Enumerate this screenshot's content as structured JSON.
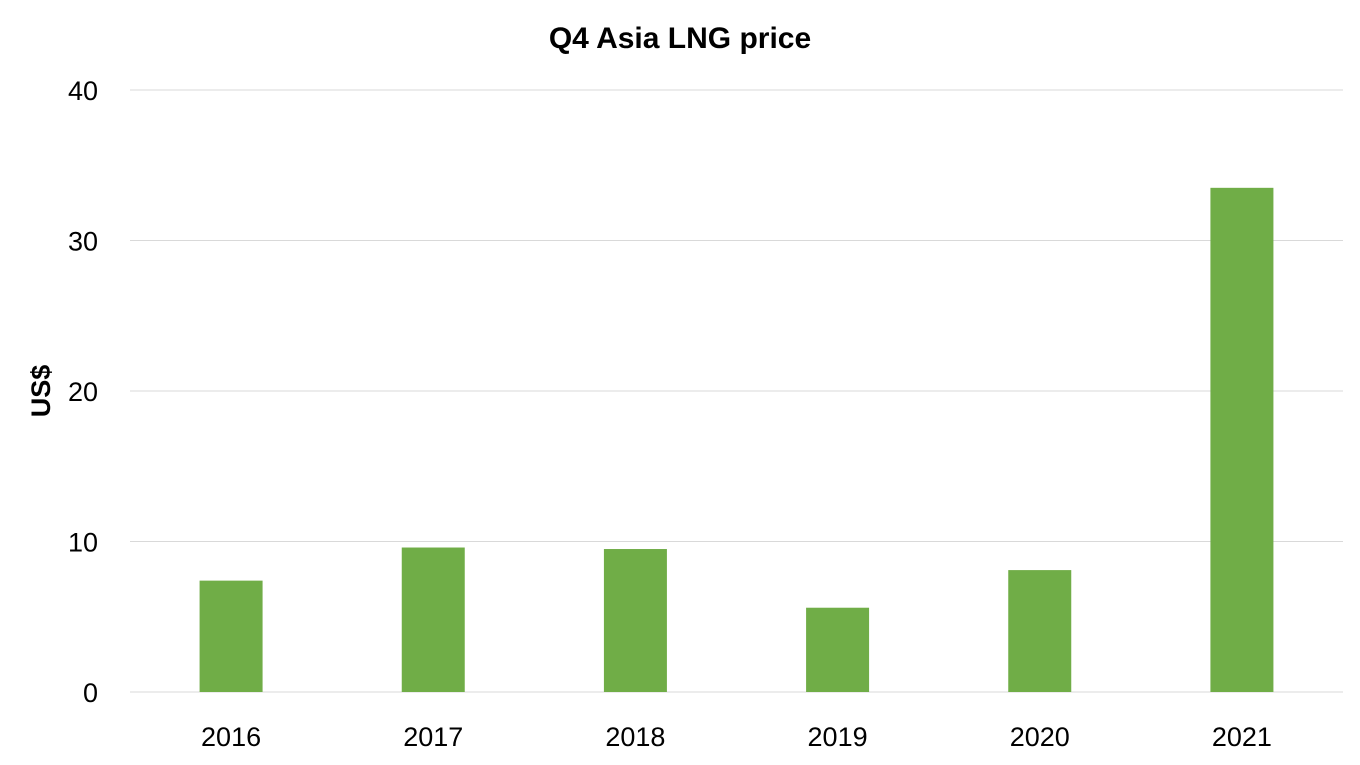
{
  "chart_data": {
    "type": "bar",
    "title": "Q4 Asia LNG price",
    "xlabel": "",
    "ylabel": "US$",
    "categories": [
      "2016",
      "2017",
      "2018",
      "2019",
      "2020",
      "2021"
    ],
    "values": [
      7.4,
      9.6,
      9.5,
      5.6,
      8.1,
      33.5
    ],
    "ylim": [
      0,
      40
    ],
    "yticks": [
      "0",
      "10",
      "20",
      "30",
      "40"
    ],
    "grid": true,
    "legend": "none",
    "bar_color": "#70AD47",
    "grid_color": "#D9D9D9"
  }
}
